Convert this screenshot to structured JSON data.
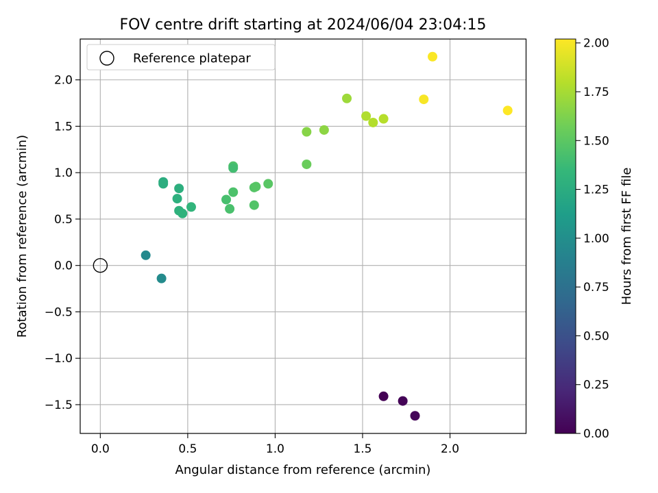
{
  "chart_data": {
    "type": "scatter",
    "title": "FOV centre drift starting at 2024/06/04 23:04:15",
    "xlabel": "Angular distance from reference (arcmin)",
    "ylabel": "Rotation from reference (arcmin)",
    "xlim": [
      -0.115,
      2.435
    ],
    "ylim": [
      -1.81,
      2.44
    ],
    "xticks": [
      0.0,
      0.5,
      1.0,
      1.5,
      2.0
    ],
    "xtick_labels": [
      "0.0",
      "0.5",
      "1.0",
      "1.5",
      "2.0"
    ],
    "yticks": [
      -1.5,
      -1.0,
      -0.5,
      0.0,
      0.5,
      1.0,
      1.5,
      2.0
    ],
    "ytick_labels": [
      "−1.5",
      "−1.0",
      "−0.5",
      "0.0",
      "0.5",
      "1.0",
      "1.5",
      "2.0"
    ],
    "grid": true,
    "legend": {
      "placement": "top-left",
      "entries": [
        {
          "label": "Reference platepar",
          "marker": "open-circle",
          "x": 0.0,
          "y": 0.0
        }
      ]
    },
    "colorbar": {
      "label": "Hours from first FF file",
      "colormap": "viridis",
      "range": [
        0.0,
        2.02
      ],
      "ticks": [
        0.0,
        0.25,
        0.5,
        0.75,
        1.0,
        1.25,
        1.5,
        1.75,
        2.0
      ],
      "tick_labels": [
        "0.00",
        "0.25",
        "0.50",
        "0.75",
        "1.00",
        "1.25",
        "1.50",
        "1.75",
        "2.00"
      ]
    },
    "points": [
      {
        "x": 1.62,
        "y": -1.41,
        "c": 0.0
      },
      {
        "x": 1.73,
        "y": -1.46,
        "c": 0.02
      },
      {
        "x": 1.8,
        "y": -1.62,
        "c": 0.03
      },
      {
        "x": 0.26,
        "y": 0.11,
        "c": 0.95
      },
      {
        "x": 0.35,
        "y": -0.14,
        "c": 0.97
      },
      {
        "x": 0.36,
        "y": 0.9,
        "c": 1.25
      },
      {
        "x": 0.36,
        "y": 0.88,
        "c": 1.26
      },
      {
        "x": 0.45,
        "y": 0.83,
        "c": 1.27
      },
      {
        "x": 0.44,
        "y": 0.72,
        "c": 1.28
      },
      {
        "x": 0.45,
        "y": 0.59,
        "c": 1.29
      },
      {
        "x": 0.47,
        "y": 0.56,
        "c": 1.3
      },
      {
        "x": 0.52,
        "y": 0.63,
        "c": 1.32
      },
      {
        "x": 0.76,
        "y": 1.07,
        "c": 1.45
      },
      {
        "x": 0.76,
        "y": 1.05,
        "c": 1.4
      },
      {
        "x": 0.72,
        "y": 0.71,
        "c": 1.42
      },
      {
        "x": 0.74,
        "y": 0.61,
        "c": 1.43
      },
      {
        "x": 0.76,
        "y": 0.79,
        "c": 1.44
      },
      {
        "x": 0.88,
        "y": 0.84,
        "c": 1.47
      },
      {
        "x": 0.89,
        "y": 0.85,
        "c": 1.48
      },
      {
        "x": 0.88,
        "y": 0.65,
        "c": 1.46
      },
      {
        "x": 0.96,
        "y": 0.88,
        "c": 1.49
      },
      {
        "x": 1.18,
        "y": 1.09,
        "c": 1.55
      },
      {
        "x": 1.18,
        "y": 1.44,
        "c": 1.65
      },
      {
        "x": 1.28,
        "y": 1.46,
        "c": 1.67
      },
      {
        "x": 1.41,
        "y": 1.8,
        "c": 1.72
      },
      {
        "x": 1.52,
        "y": 1.61,
        "c": 1.78
      },
      {
        "x": 1.56,
        "y": 1.54,
        "c": 1.79
      },
      {
        "x": 1.62,
        "y": 1.58,
        "c": 1.8
      },
      {
        "x": 1.85,
        "y": 1.79,
        "c": 2.0
      },
      {
        "x": 1.9,
        "y": 2.25,
        "c": 2.01
      },
      {
        "x": 2.33,
        "y": 1.67,
        "c": 2.02
      }
    ]
  }
}
